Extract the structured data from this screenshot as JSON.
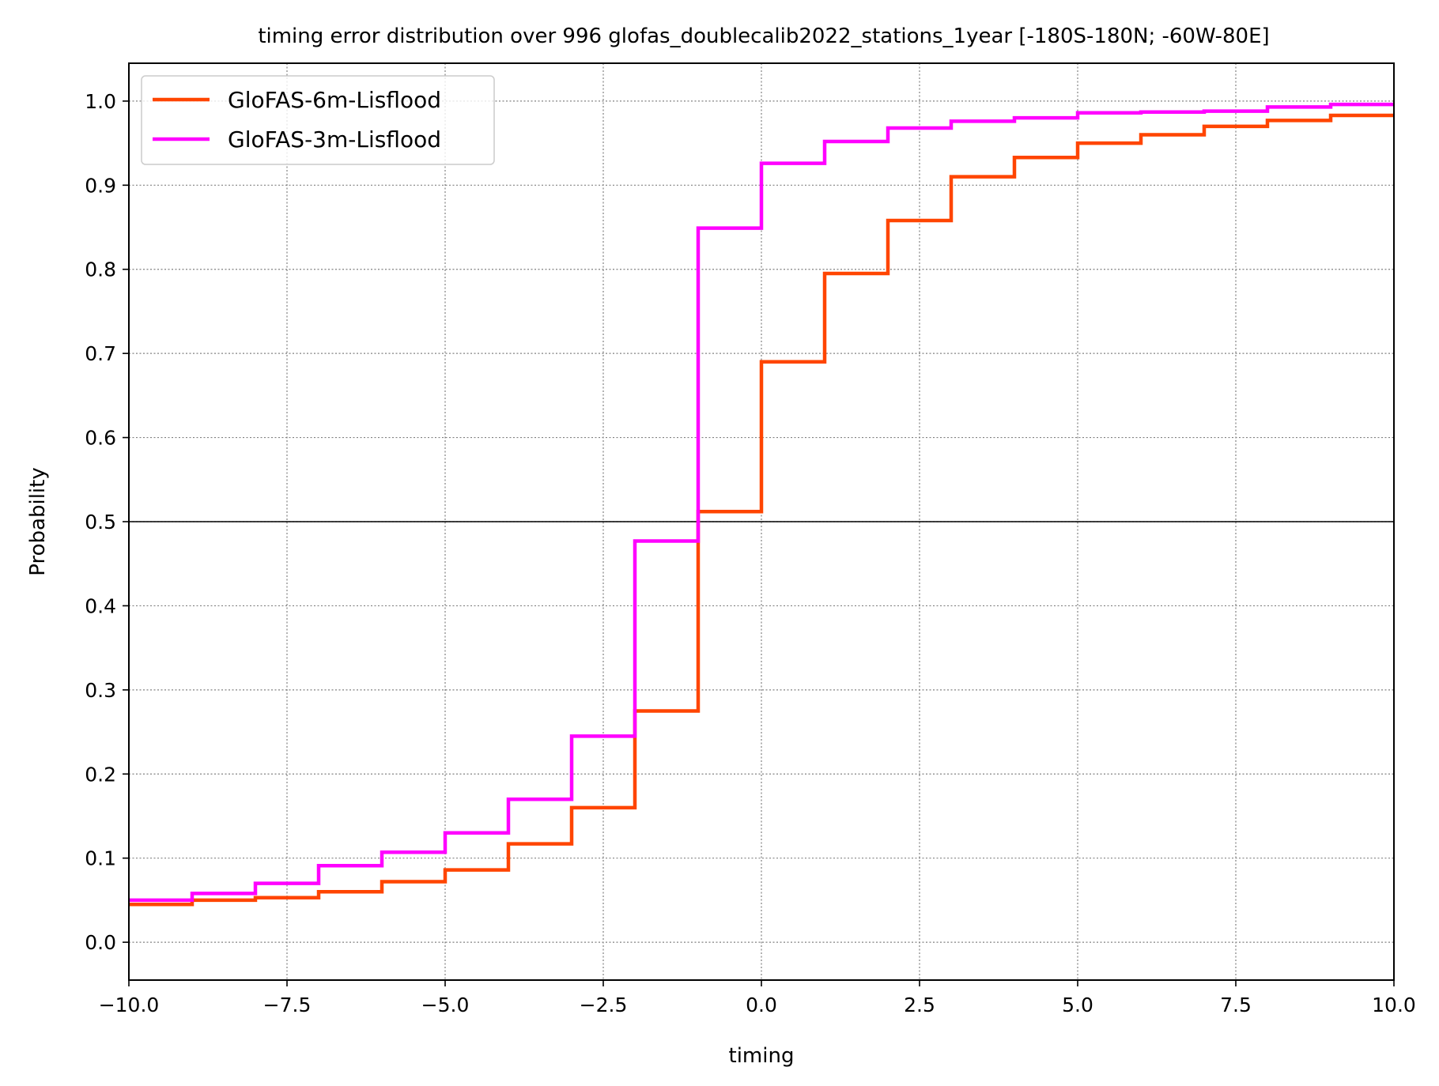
{
  "chart_data": {
    "type": "line",
    "title": "timing error distribution over 996 glofas_doublecalib2022_stations_1year [-180S-180N; -60W-80E]",
    "xlabel": "timing",
    "ylabel": "Probability",
    "xlim": [
      -10,
      10
    ],
    "ylim": [
      -0.045,
      1.045
    ],
    "xticks": [
      -10,
      -7.5,
      -5,
      -2.5,
      0,
      2.5,
      5,
      7.5,
      10
    ],
    "xtick_labels": [
      "−10.0",
      "−7.5",
      "−5.0",
      "−2.5",
      "0.0",
      "2.5",
      "5.0",
      "7.5",
      "10.0"
    ],
    "yticks": [
      0,
      0.1,
      0.2,
      0.3,
      0.4,
      0.5,
      0.6,
      0.7,
      0.8,
      0.9,
      1.0
    ],
    "ytick_labels": [
      "0.0",
      "0.1",
      "0.2",
      "0.3",
      "0.4",
      "0.5",
      "0.6",
      "0.7",
      "0.8",
      "0.9",
      "1.0"
    ],
    "grid": true,
    "reference_line": 0.5,
    "legend_position": "top-left",
    "step": "post",
    "x": [
      -10,
      -9,
      -8,
      -7,
      -6,
      -5,
      -4,
      -3,
      -2,
      -1,
      0,
      1,
      2,
      3,
      4,
      5,
      6,
      7,
      8,
      9,
      10
    ],
    "series": [
      {
        "name": "GloFAS-6m-Lisflood",
        "color": "#ff4500",
        "values": [
          0.045,
          0.05,
          0.053,
          0.06,
          0.072,
          0.086,
          0.117,
          0.16,
          0.275,
          0.512,
          0.69,
          0.795,
          0.858,
          0.91,
          0.933,
          0.95,
          0.96,
          0.97,
          0.977,
          0.983,
          0.983
        ]
      },
      {
        "name": "GloFAS-3m-Lisflood",
        "color": "#ff00ff",
        "values": [
          0.05,
          0.058,
          0.07,
          0.091,
          0.107,
          0.13,
          0.17,
          0.245,
          0.477,
          0.849,
          0.926,
          0.952,
          0.968,
          0.976,
          0.98,
          0.986,
          0.987,
          0.988,
          0.993,
          0.996,
          0.996
        ]
      }
    ]
  }
}
